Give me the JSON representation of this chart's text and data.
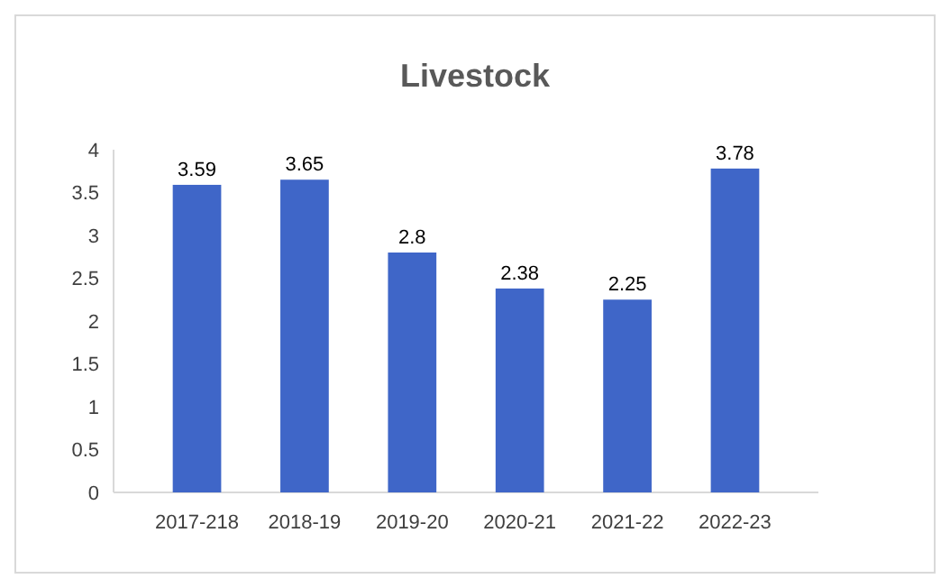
{
  "chart_data": {
    "type": "bar",
    "title": "Livestock",
    "categories": [
      "2017-218",
      "2018-19",
      "2019-20",
      "2020-21",
      "2021-22",
      "2022-23"
    ],
    "values": [
      3.59,
      3.65,
      2.8,
      2.38,
      2.25,
      3.78
    ],
    "color": "#3f66c8",
    "ylim": [
      0,
      4
    ],
    "yticks": [
      0,
      0.5,
      1,
      1.5,
      2,
      2.5,
      3,
      3.5,
      4
    ],
    "data_labels": true,
    "grid": false
  }
}
